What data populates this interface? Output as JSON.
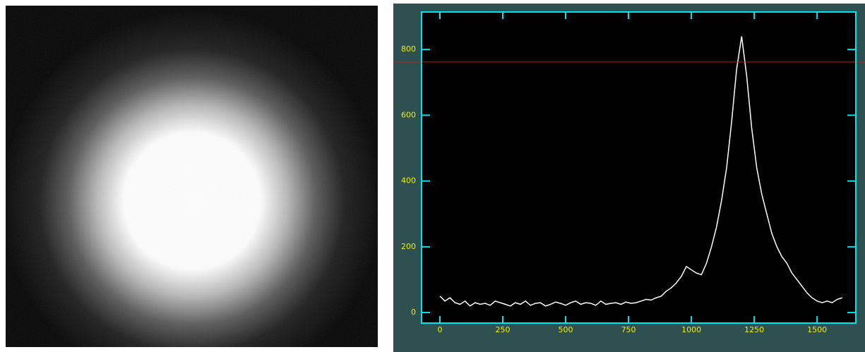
{
  "chart_data": {
    "type": "line",
    "x": [
      0,
      20,
      40,
      60,
      80,
      100,
      120,
      140,
      160,
      180,
      200,
      220,
      240,
      260,
      280,
      300,
      320,
      340,
      360,
      380,
      400,
      420,
      440,
      460,
      480,
      500,
      520,
      540,
      560,
      580,
      600,
      620,
      640,
      660,
      680,
      700,
      720,
      740,
      760,
      780,
      800,
      820,
      840,
      860,
      880,
      900,
      920,
      940,
      960,
      980,
      1000,
      1020,
      1040,
      1060,
      1080,
      1100,
      1120,
      1140,
      1160,
      1180,
      1200,
      1220,
      1240,
      1260,
      1280,
      1300,
      1320,
      1340,
      1360,
      1380,
      1400,
      1420,
      1440,
      1460,
      1480,
      1500,
      1520,
      1540,
      1560,
      1580,
      1600
    ],
    "values": [
      50,
      35,
      45,
      30,
      25,
      35,
      20,
      30,
      25,
      28,
      22,
      35,
      30,
      25,
      20,
      30,
      25,
      35,
      22,
      28,
      30,
      20,
      25,
      32,
      28,
      22,
      30,
      35,
      25,
      30,
      28,
      22,
      35,
      25,
      28,
      30,
      25,
      32,
      28,
      30,
      35,
      40,
      38,
      45,
      50,
      65,
      75,
      90,
      110,
      140,
      130,
      120,
      115,
      150,
      200,
      260,
      340,
      440,
      580,
      740,
      840,
      720,
      560,
      440,
      360,
      300,
      240,
      200,
      170,
      150,
      120,
      100,
      80,
      60,
      45,
      35,
      30,
      35,
      30,
      40,
      45
    ],
    "color": "#ffffff",
    "xlim": [
      -73,
      1654
    ],
    "ylim": [
      -32,
      914
    ],
    "xticks": [
      0,
      250,
      500,
      750,
      1000,
      1250,
      1500
    ],
    "yticks": [
      0,
      200,
      400,
      600,
      800
    ],
    "hline": 762,
    "hline_color": "#e01010",
    "axis_color": "#00e5ee",
    "tick_label_color": "#f0f000",
    "grid": false
  }
}
